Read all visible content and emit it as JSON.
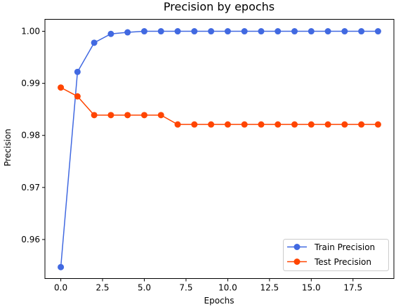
{
  "chart_data": {
    "type": "line",
    "title": "Precision by epochs",
    "xlabel": "Epochs",
    "ylabel": "Precision",
    "xlim": [
      -0.95,
      19.95
    ],
    "ylim": [
      0.9525,
      1.0023
    ],
    "xticks": [
      0.0,
      2.5,
      5.0,
      7.5,
      10.0,
      12.5,
      15.0,
      17.5
    ],
    "xtick_labels": [
      "0.0",
      "2.5",
      "5.0",
      "7.5",
      "10.0",
      "12.5",
      "15.0",
      "17.5"
    ],
    "yticks": [
      0.96,
      0.97,
      0.98,
      0.99,
      1.0
    ],
    "ytick_labels": [
      "0.96",
      "0.97",
      "0.98",
      "0.99",
      "1.00"
    ],
    "grid": false,
    "legend_position": "lower-right",
    "x": [
      0,
      1,
      2,
      3,
      4,
      5,
      6,
      7,
      8,
      9,
      10,
      11,
      12,
      13,
      14,
      15,
      16,
      17,
      18,
      19
    ],
    "series": [
      {
        "name": "Train Precision",
        "color": "#4169e1",
        "marker": "circle",
        "values": [
          0.9547,
          0.9922,
          0.9978,
          0.9995,
          0.9998,
          1.0,
          1.0,
          1.0,
          1.0,
          1.0,
          1.0,
          1.0,
          1.0,
          1.0,
          1.0,
          1.0,
          1.0,
          1.0,
          1.0,
          1.0
        ]
      },
      {
        "name": "Test Precision",
        "color": "#ff4500",
        "marker": "circle",
        "values": [
          0.9892,
          0.9875,
          0.9839,
          0.9839,
          0.9839,
          0.9839,
          0.9839,
          0.9821,
          0.9821,
          0.9821,
          0.9821,
          0.9821,
          0.9821,
          0.9821,
          0.9821,
          0.9821,
          0.9821,
          0.9821,
          0.9821,
          0.9821
        ]
      }
    ]
  }
}
